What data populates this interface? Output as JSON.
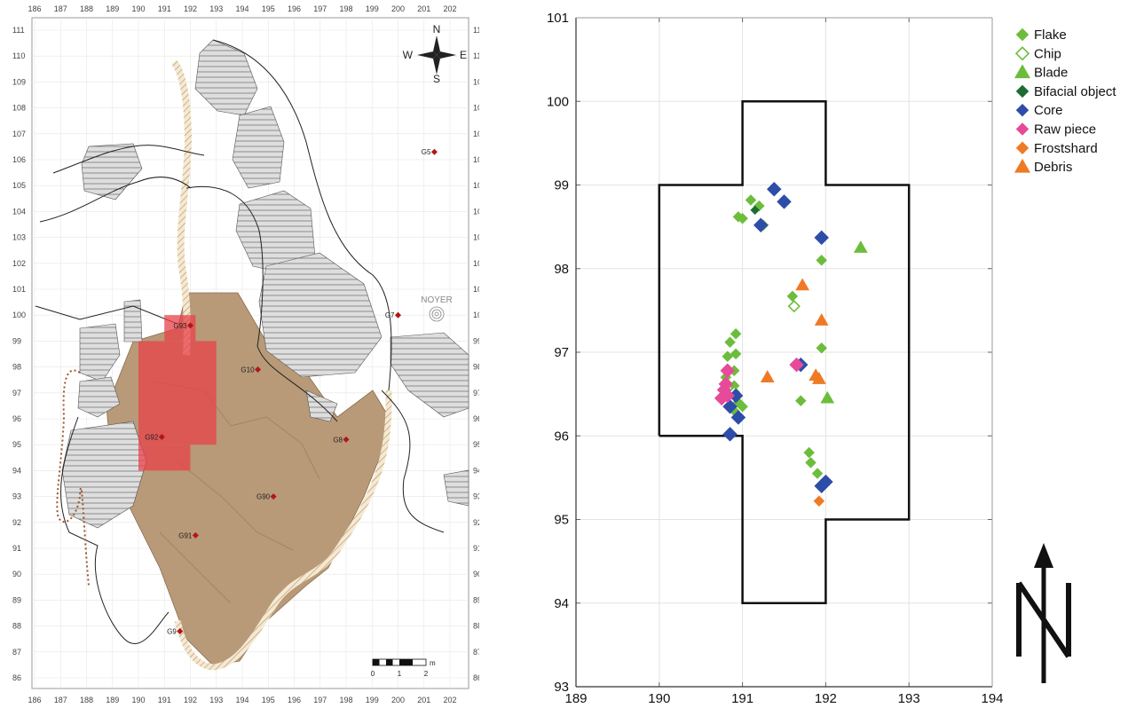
{
  "map": {
    "x_ticks": [
      "186",
      "187",
      "188",
      "189",
      "190",
      "191",
      "192",
      "193",
      "194",
      "195",
      "196",
      "197",
      "198",
      "199",
      "200",
      "201",
      "202"
    ],
    "y_ticks": [
      "111",
      "110",
      "109",
      "108",
      "107",
      "106",
      "105",
      "104",
      "103",
      "102",
      "101",
      "100",
      "99",
      "98",
      "97",
      "96",
      "95",
      "94",
      "93",
      "92",
      "91",
      "90",
      "89",
      "88",
      "87",
      "86"
    ],
    "compass": {
      "n": "N",
      "s": "S",
      "e": "E",
      "w": "W"
    },
    "points": [
      {
        "label": "G5",
        "x": 201.4,
        "y": 106.3
      },
      {
        "label": "G7",
        "x": 200.0,
        "y": 100.0
      },
      {
        "label": "G93",
        "x": 192.0,
        "y": 99.6
      },
      {
        "label": "G10",
        "x": 194.6,
        "y": 97.9
      },
      {
        "label": "G8",
        "x": 198.0,
        "y": 95.2
      },
      {
        "label": "G92",
        "x": 190.9,
        "y": 95.3
      },
      {
        "label": "G90",
        "x": 195.2,
        "y": 93.0
      },
      {
        "label": "G91",
        "x": 192.2,
        "y": 91.5
      },
      {
        "label": "G9",
        "x": 191.6,
        "y": 87.8
      }
    ],
    "noyer_label": "NOYER",
    "scale": {
      "unit": "m",
      "labels": [
        "0",
        "1",
        "2"
      ]
    },
    "colors": {
      "terrain": "#b89a78",
      "rock": "#d6d6d6",
      "highlight": "#e8424a",
      "point": "#b01818",
      "trail": "#a0522d"
    }
  },
  "chart_data": {
    "type": "scatter",
    "xlim": [
      189,
      194
    ],
    "ylim": [
      93,
      101
    ],
    "x_ticks": [
      189,
      190,
      191,
      192,
      193,
      194
    ],
    "y_ticks": [
      93,
      94,
      95,
      96,
      97,
      98,
      99,
      100,
      101
    ],
    "grid": true,
    "legend_position": "top-right",
    "outline": [
      [
        190,
        96
      ],
      [
        190,
        99
      ],
      [
        191,
        99
      ],
      [
        191,
        100
      ],
      [
        192,
        100
      ],
      [
        192,
        99
      ],
      [
        193,
        99
      ],
      [
        193,
        95
      ],
      [
        192,
        95
      ],
      [
        192,
        94
      ],
      [
        191,
        94
      ],
      [
        191,
        96
      ],
      [
        190,
        96
      ]
    ],
    "north_arrow": "N",
    "series": [
      {
        "name": "Flake",
        "marker": "diamond",
        "filled": true,
        "color": "#6cbd3c",
        "points": [
          [
            190.95,
            98.62
          ],
          [
            191.0,
            98.6
          ],
          [
            191.1,
            98.82
          ],
          [
            191.2,
            98.75
          ],
          [
            191.25,
            98.52
          ],
          [
            191.95,
            98.1
          ],
          [
            191.6,
            97.67
          ],
          [
            190.92,
            97.22
          ],
          [
            190.85,
            97.12
          ],
          [
            190.92,
            96.98
          ],
          [
            190.82,
            96.95
          ],
          [
            190.9,
            96.78
          ],
          [
            190.8,
            96.7
          ],
          [
            190.9,
            96.6
          ],
          [
            190.85,
            96.5
          ],
          [
            190.95,
            96.4
          ],
          [
            191.0,
            96.35
          ],
          [
            190.9,
            96.3
          ],
          [
            191.95,
            97.05
          ],
          [
            191.7,
            96.42
          ],
          [
            191.8,
            95.8
          ],
          [
            191.82,
            95.68
          ],
          [
            191.9,
            95.55
          ],
          [
            192.0,
            95.45
          ],
          [
            191.95,
            95.4
          ]
        ]
      },
      {
        "name": "Chip",
        "marker": "diamond",
        "filled": false,
        "color": "#6cbd3c",
        "points": [
          [
            191.62,
            97.55
          ],
          [
            190.9,
            96.52
          ]
        ]
      },
      {
        "name": "Blade",
        "marker": "triangle",
        "filled": true,
        "color": "#6cbd3c",
        "points": [
          [
            192.42,
            98.25
          ],
          [
            192.02,
            96.45
          ]
        ]
      },
      {
        "name": "Bifacial object",
        "marker": "diamond",
        "filled": true,
        "color": "#1e6b34",
        "points": [
          [
            191.15,
            98.7
          ]
        ]
      },
      {
        "name": "Core",
        "marker": "diamond",
        "filled": true,
        "color": "#2e4da8",
        "points": [
          [
            191.38,
            98.95
          ],
          [
            191.5,
            98.8
          ],
          [
            191.22,
            98.52
          ],
          [
            191.95,
            98.37
          ],
          [
            191.7,
            96.85
          ],
          [
            190.92,
            96.48
          ],
          [
            190.85,
            96.35
          ],
          [
            190.95,
            96.22
          ],
          [
            190.85,
            96.02
          ],
          [
            191.95,
            95.4
          ],
          [
            192.0,
            95.45
          ]
        ]
      },
      {
        "name": "Raw piece",
        "marker": "diamond",
        "filled": true,
        "color": "#e84a9a",
        "points": [
          [
            191.65,
            96.85
          ],
          [
            190.82,
            96.78
          ],
          [
            190.8,
            96.62
          ],
          [
            190.78,
            96.55
          ],
          [
            190.75,
            96.45
          ],
          [
            190.82,
            96.48
          ]
        ]
      },
      {
        "name": "Frostshard",
        "marker": "diamond",
        "filled": true,
        "color": "#ef7a24",
        "points": [
          [
            191.92,
            95.22
          ]
        ]
      },
      {
        "name": "Debris",
        "marker": "triangle",
        "filled": true,
        "color": "#ef7a24",
        "points": [
          [
            191.72,
            97.8
          ],
          [
            191.95,
            97.38
          ],
          [
            191.88,
            96.72
          ],
          [
            191.92,
            96.68
          ],
          [
            191.3,
            96.7
          ]
        ]
      }
    ]
  }
}
